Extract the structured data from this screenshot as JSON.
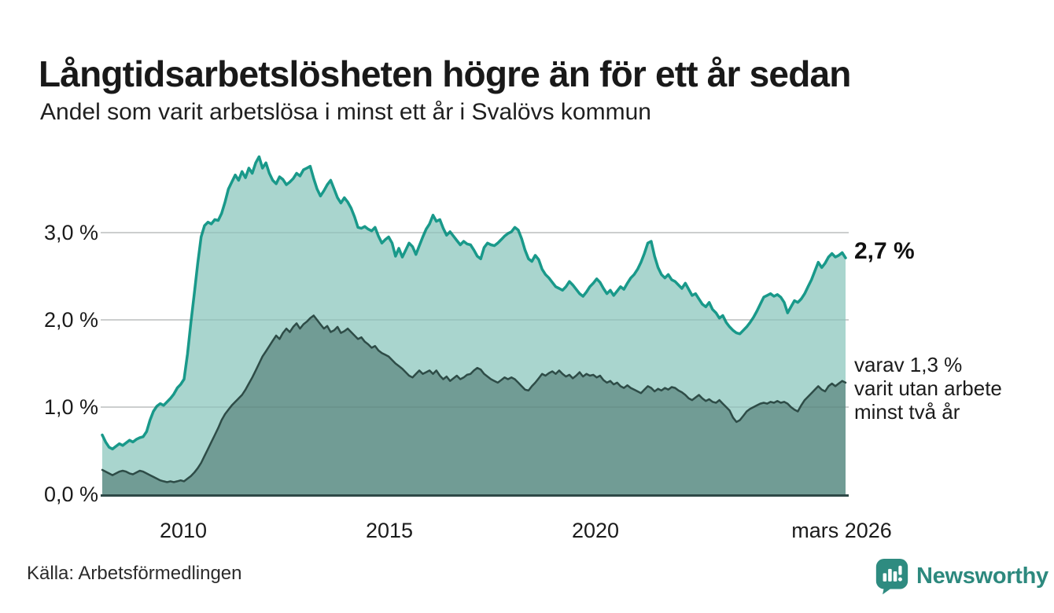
{
  "header": {
    "title": "Långtidsarbetslösheten högre än för ett år sedan",
    "subtitle": "Andel som varit arbetslösa i minst ett år i Svalövs kommun"
  },
  "annotations": {
    "latest_1yr": "2,7 %",
    "latest_2yr": "varav 1,3 %\nvarit utan arbete\nminst två år"
  },
  "footer": {
    "source": "Källa: Arbetsförmedlingen",
    "brand": "Newsworthy"
  },
  "colors": {
    "accent_teal": "#19998a",
    "light_fill": "#a9d5ce",
    "dark_line": "#2e4c47",
    "dark_fill": "#719c95",
    "grid": "#dedede",
    "grid_overlay": "rgba(45,70,65,0.10)",
    "baseline": "#2e4947",
    "brand_teal": "#2d897e"
  },
  "chart_data": {
    "type": "area",
    "title": "Långtidsarbetslösheten högre än för ett år sedan",
    "subtitle": "Andel som varit arbetslösa i minst ett år i Svalövs kommun",
    "unit": "%",
    "interval": "monthly",
    "x_start": "2008-01",
    "x_end": "2026-03",
    "ylim": [
      0,
      4
    ],
    "grid": "horizontal",
    "y_ticks": [
      3,
      2,
      1,
      0
    ],
    "y_tick_labels": [
      "3,0 %",
      "2,0 %",
      "1,0 %",
      "0,0 %"
    ],
    "x_tick_labels": [
      "2010",
      "2015",
      "2020",
      "mars 2026"
    ],
    "x_tick_month_indices": [
      24,
      84,
      144,
      218
    ],
    "latest_values": {
      "minst_ett_ar": 2.7,
      "minst_tva_ar": 1.3
    },
    "series": [
      {
        "name": "Andel arbetslösa minst ett år",
        "color": "#19998a",
        "fill": "#a9d5ce",
        "stroke_width": 3.5,
        "values": [
          0.68,
          0.6,
          0.54,
          0.52,
          0.55,
          0.58,
          0.56,
          0.59,
          0.62,
          0.6,
          0.63,
          0.65,
          0.66,
          0.72,
          0.85,
          0.95,
          1.01,
          1.04,
          1.02,
          1.06,
          1.1,
          1.15,
          1.22,
          1.26,
          1.32,
          1.61,
          1.97,
          2.3,
          2.65,
          2.95,
          3.08,
          3.12,
          3.1,
          3.15,
          3.14,
          3.22,
          3.35,
          3.5,
          3.58,
          3.66,
          3.6,
          3.7,
          3.63,
          3.74,
          3.68,
          3.8,
          3.87,
          3.74,
          3.8,
          3.68,
          3.6,
          3.56,
          3.64,
          3.61,
          3.55,
          3.58,
          3.62,
          3.68,
          3.65,
          3.72,
          3.74,
          3.76,
          3.62,
          3.5,
          3.42,
          3.48,
          3.55,
          3.6,
          3.5,
          3.4,
          3.34,
          3.4,
          3.35,
          3.28,
          3.18,
          3.06,
          3.05,
          3.07,
          3.04,
          3.02,
          3.06,
          2.96,
          2.88,
          2.92,
          2.95,
          2.88,
          2.73,
          2.82,
          2.72,
          2.8,
          2.88,
          2.84,
          2.75,
          2.85,
          2.95,
          3.04,
          3.1,
          3.2,
          3.13,
          3.15,
          3.05,
          2.97,
          3.01,
          2.96,
          2.91,
          2.86,
          2.9,
          2.87,
          2.86,
          2.8,
          2.73,
          2.7,
          2.83,
          2.88,
          2.86,
          2.85,
          2.88,
          2.92,
          2.96,
          2.99,
          3.01,
          3.06,
          3.03,
          2.93,
          2.8,
          2.7,
          2.67,
          2.74,
          2.69,
          2.58,
          2.52,
          2.48,
          2.43,
          2.38,
          2.36,
          2.34,
          2.38,
          2.44,
          2.4,
          2.35,
          2.3,
          2.27,
          2.32,
          2.38,
          2.42,
          2.47,
          2.43,
          2.36,
          2.3,
          2.34,
          2.28,
          2.33,
          2.38,
          2.35,
          2.42,
          2.48,
          2.52,
          2.58,
          2.66,
          2.76,
          2.88,
          2.9,
          2.73,
          2.6,
          2.52,
          2.48,
          2.52,
          2.46,
          2.44,
          2.4,
          2.36,
          2.42,
          2.35,
          2.28,
          2.3,
          2.24,
          2.18,
          2.15,
          2.2,
          2.12,
          2.08,
          2.02,
          2.05,
          1.97,
          1.92,
          1.88,
          1.85,
          1.84,
          1.88,
          1.92,
          1.97,
          2.03,
          2.1,
          2.18,
          2.26,
          2.28,
          2.3,
          2.27,
          2.29,
          2.26,
          2.2,
          2.08,
          2.15,
          2.22,
          2.2,
          2.24,
          2.3,
          2.38,
          2.46,
          2.56,
          2.66,
          2.6,
          2.65,
          2.72,
          2.76,
          2.72,
          2.74,
          2.77,
          2.71
        ]
      },
      {
        "name": "varav utan arbete minst två år",
        "color": "#2e4c47",
        "fill": "#719c95",
        "stroke_width": 2.5,
        "values": [
          0.28,
          0.26,
          0.24,
          0.22,
          0.24,
          0.26,
          0.27,
          0.26,
          0.24,
          0.23,
          0.25,
          0.27,
          0.26,
          0.24,
          0.22,
          0.2,
          0.18,
          0.16,
          0.15,
          0.14,
          0.15,
          0.14,
          0.15,
          0.16,
          0.15,
          0.18,
          0.21,
          0.25,
          0.3,
          0.36,
          0.44,
          0.52,
          0.6,
          0.68,
          0.76,
          0.85,
          0.92,
          0.97,
          1.02,
          1.06,
          1.1,
          1.14,
          1.2,
          1.27,
          1.34,
          1.42,
          1.5,
          1.58,
          1.64,
          1.7,
          1.76,
          1.82,
          1.78,
          1.85,
          1.9,
          1.86,
          1.92,
          1.96,
          1.9,
          1.95,
          1.98,
          2.02,
          2.05,
          2.0,
          1.95,
          1.9,
          1.93,
          1.86,
          1.88,
          1.92,
          1.85,
          1.87,
          1.9,
          1.86,
          1.82,
          1.78,
          1.8,
          1.75,
          1.72,
          1.68,
          1.7,
          1.65,
          1.62,
          1.6,
          1.58,
          1.54,
          1.5,
          1.47,
          1.44,
          1.4,
          1.36,
          1.34,
          1.38,
          1.42,
          1.38,
          1.4,
          1.42,
          1.38,
          1.42,
          1.36,
          1.32,
          1.35,
          1.3,
          1.33,
          1.36,
          1.32,
          1.34,
          1.37,
          1.38,
          1.42,
          1.45,
          1.43,
          1.38,
          1.35,
          1.32,
          1.3,
          1.28,
          1.31,
          1.34,
          1.32,
          1.34,
          1.32,
          1.28,
          1.24,
          1.2,
          1.19,
          1.24,
          1.28,
          1.33,
          1.38,
          1.36,
          1.39,
          1.41,
          1.38,
          1.42,
          1.38,
          1.35,
          1.37,
          1.33,
          1.36,
          1.4,
          1.35,
          1.38,
          1.36,
          1.37,
          1.34,
          1.36,
          1.31,
          1.28,
          1.3,
          1.26,
          1.28,
          1.24,
          1.22,
          1.25,
          1.22,
          1.2,
          1.18,
          1.16,
          1.2,
          1.24,
          1.22,
          1.18,
          1.21,
          1.19,
          1.22,
          1.2,
          1.23,
          1.22,
          1.19,
          1.17,
          1.14,
          1.1,
          1.08,
          1.11,
          1.14,
          1.1,
          1.07,
          1.09,
          1.06,
          1.05,
          1.08,
          1.04,
          1.0,
          0.96,
          0.88,
          0.83,
          0.85,
          0.9,
          0.95,
          0.98,
          1.0,
          1.02,
          1.04,
          1.05,
          1.04,
          1.06,
          1.05,
          1.07,
          1.05,
          1.06,
          1.04,
          1.0,
          0.97,
          0.95,
          1.02,
          1.08,
          1.12,
          1.16,
          1.2,
          1.24,
          1.2,
          1.18,
          1.24,
          1.27,
          1.24,
          1.27,
          1.3,
          1.28
        ]
      }
    ]
  }
}
